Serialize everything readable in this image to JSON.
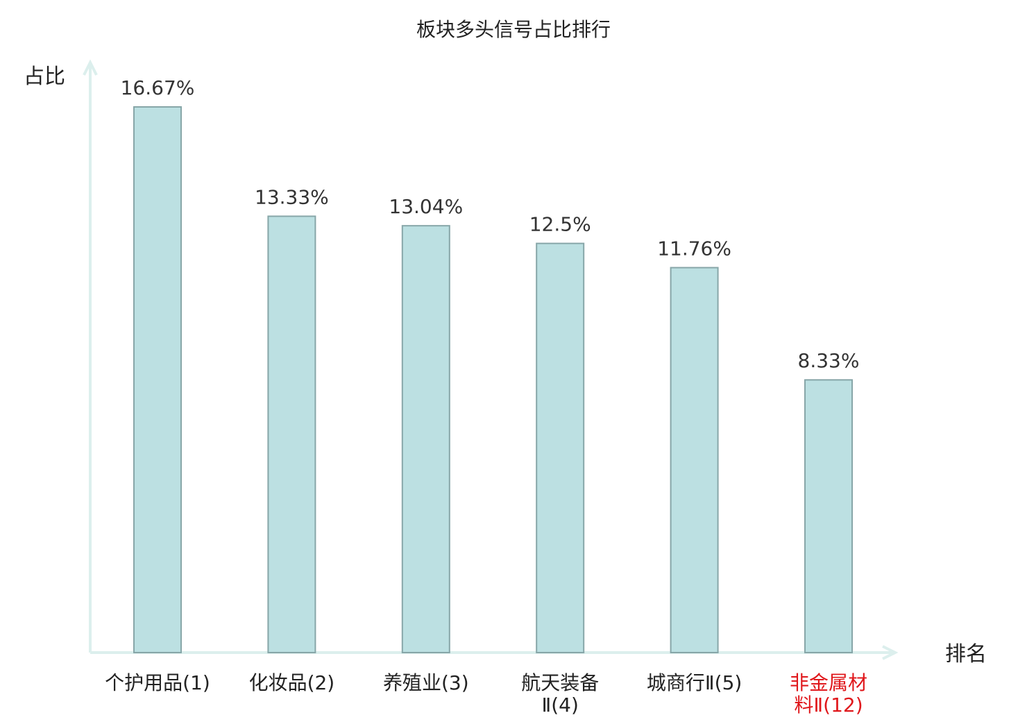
{
  "chart_data": {
    "type": "bar",
    "title": "板块多头信号占比排行",
    "ylabel": "占比",
    "xlabel": "排名",
    "categories": [
      [
        "个护用品(1)"
      ],
      [
        "化妆品(2)"
      ],
      [
        "养殖业(3)"
      ],
      [
        "航天装备",
        "Ⅱ(4)"
      ],
      [
        "城商行Ⅱ(5)"
      ],
      [
        "非金属材",
        "料Ⅱ(12)"
      ]
    ],
    "values": [
      16.67,
      13.33,
      13.04,
      12.5,
      11.76,
      8.33
    ],
    "value_labels": [
      "16.67%",
      "13.33%",
      "13.04%",
      "12.5%",
      "11.76%",
      "8.33%"
    ],
    "highlight_index": 5,
    "ylim": [
      0,
      16.67
    ],
    "grid": false,
    "colors": {
      "bar_fill": "#bce0e2",
      "bar_stroke": "#87a6a8",
      "axis": "#dcefed",
      "text": "#222222",
      "label": "#333333",
      "highlight": "#e0181c"
    }
  }
}
